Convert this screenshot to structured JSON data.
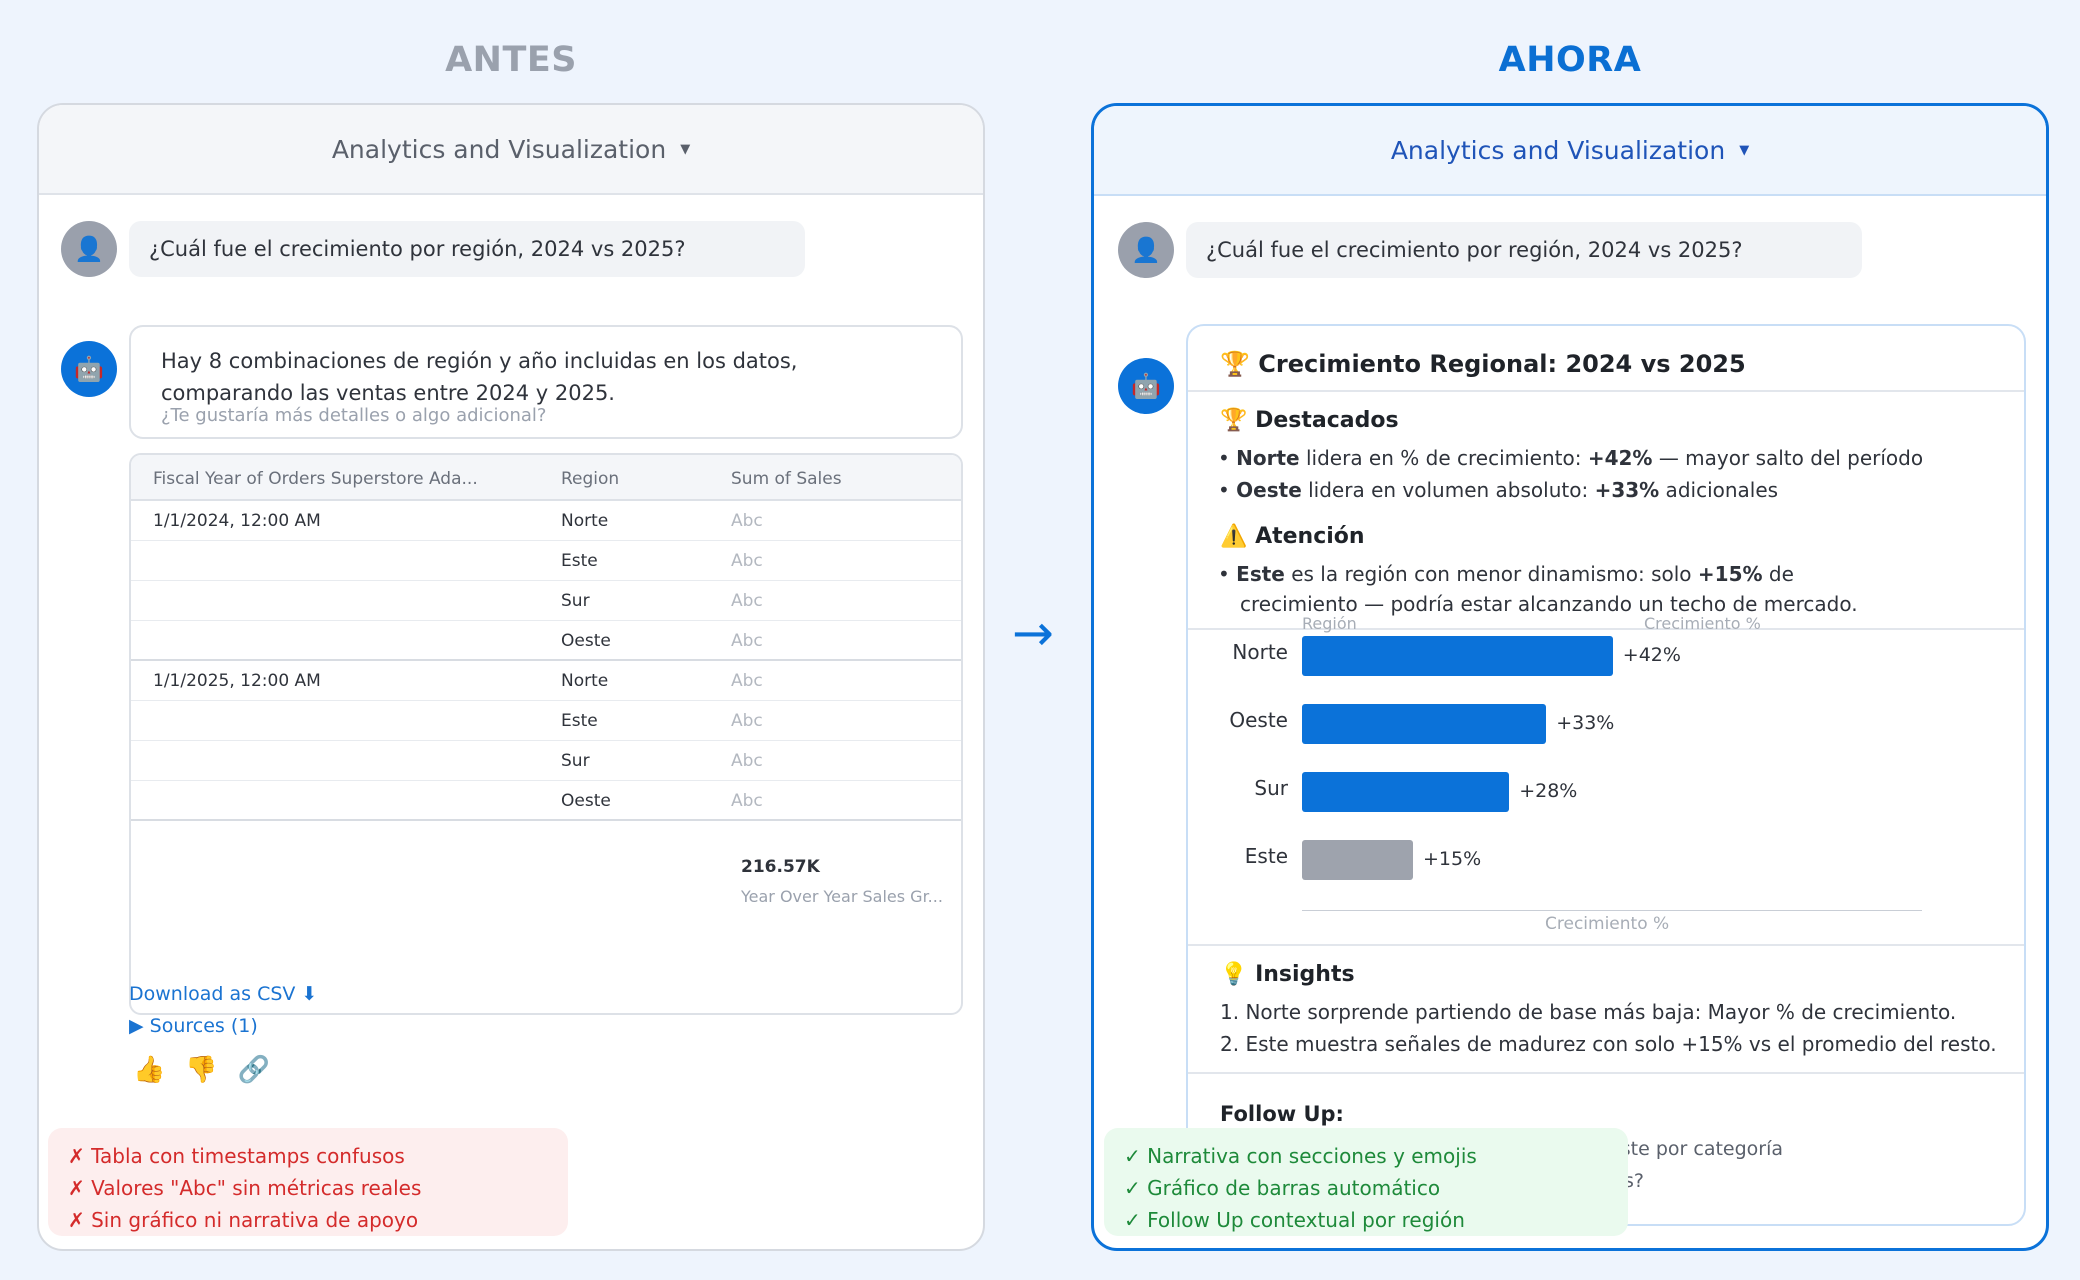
{
  "headings": {
    "before": "ANTES",
    "after": "AHORA"
  },
  "app": {
    "dropdown_label": "Analytics and Visualization",
    "caret": "▼"
  },
  "user_question": "¿Cuál fue el crecimiento por región, 2024 vs 2025?",
  "before": {
    "bot_line1": "Hay 8 combinaciones de región y año incluidas en los datos,",
    "bot_line2": "comparando las ventas entre 2024 y 2025.",
    "bot_sub": "¿Te gustaría más detalles o algo adicional?",
    "table": {
      "headers": [
        "Fiscal Year of Orders Superstore Ada...",
        "Region",
        "Sum of Sales"
      ],
      "rows": [
        [
          "1/1/2024, 12:00 AM",
          "Norte",
          "Abc"
        ],
        [
          "",
          "Este",
          "Abc"
        ],
        [
          "",
          "Sur",
          "Abc"
        ],
        [
          "",
          "Oeste",
          "Abc"
        ],
        [
          "1/1/2025, 12:00 AM",
          "Norte",
          "Abc"
        ],
        [
          "",
          "Este",
          "Abc"
        ],
        [
          "",
          "Sur",
          "Abc"
        ],
        [
          "",
          "Oeste",
          "Abc"
        ]
      ],
      "metric_value": "216.57K",
      "metric_label": "Year Over Year Sales Gr..."
    },
    "download": "Download as CSV ⬇",
    "sources": "▶ Sources (1)",
    "reactions": [
      "👍",
      "👎",
      "🔗"
    ],
    "notes": [
      "✗ Tabla con timestamps confusos",
      "✗ Valores \"Abc\" sin métricas reales",
      "✗ Sin gráfico ni narrativa de apoyo"
    ]
  },
  "arrow": "→",
  "after": {
    "title_icon": "🏆",
    "title": "Crecimiento Regional: 2024 vs 2025",
    "highlights_icon": "🏆",
    "highlights_title": "Destacados",
    "h1_a": "• ",
    "h1_b": "Norte",
    "h1_c": " lidera en % de crecimiento: ",
    "h1_d": "+42%",
    "h1_e": " — mayor salto del período",
    "h2_a": "• ",
    "h2_b": "Oeste",
    "h2_c": " lidera en volumen absoluto: ",
    "h2_d": "+33%",
    "h2_e": " adicionales",
    "attention_icon": "⚠️",
    "attention_title": "Atención",
    "a1_a": "• ",
    "a1_b": "Este",
    "a1_c": " es la región con menor dinamismo: solo ",
    "a1_d": "+15%",
    "a1_e": " de",
    "a1_line2": "crecimiento — podría estar alcanzando un techo de mercado.",
    "insights_icon": "💡",
    "insights_title": "Insights",
    "insight1": "1. Norte sorprende partiendo de base más baja: Mayor % de crecimiento.",
    "insight2": "2. Este muestra señales de madurez con solo +15% vs el promedio del resto.",
    "follow_title": "Follow Up:",
    "follow_q1": "¿Te gustaría desglosar el crecimiento de Este por categoría",
    "follow_q2_tail": "s?",
    "notes": [
      "✓ Narrativa con secciones y emojis",
      "✓ Gráfico de barras automático",
      "✓ Follow Up contextual por región"
    ]
  },
  "chart_data": {
    "type": "bar",
    "orientation": "horizontal",
    "x_axis_label_top_left": "Región",
    "x_axis_label_top_right": "Crecimiento %",
    "xlabel": "Crecimiento %",
    "categories": [
      "Norte",
      "Oeste",
      "Sur",
      "Este"
    ],
    "values": [
      42,
      33,
      28,
      15
    ],
    "value_labels": [
      "+42%",
      "+33%",
      "+28%",
      "+15%"
    ],
    "colors": [
      "#0b72d9",
      "#0b72d9",
      "#0b72d9",
      "#9ea3ad"
    ],
    "xlim": [
      0,
      100
    ]
  }
}
